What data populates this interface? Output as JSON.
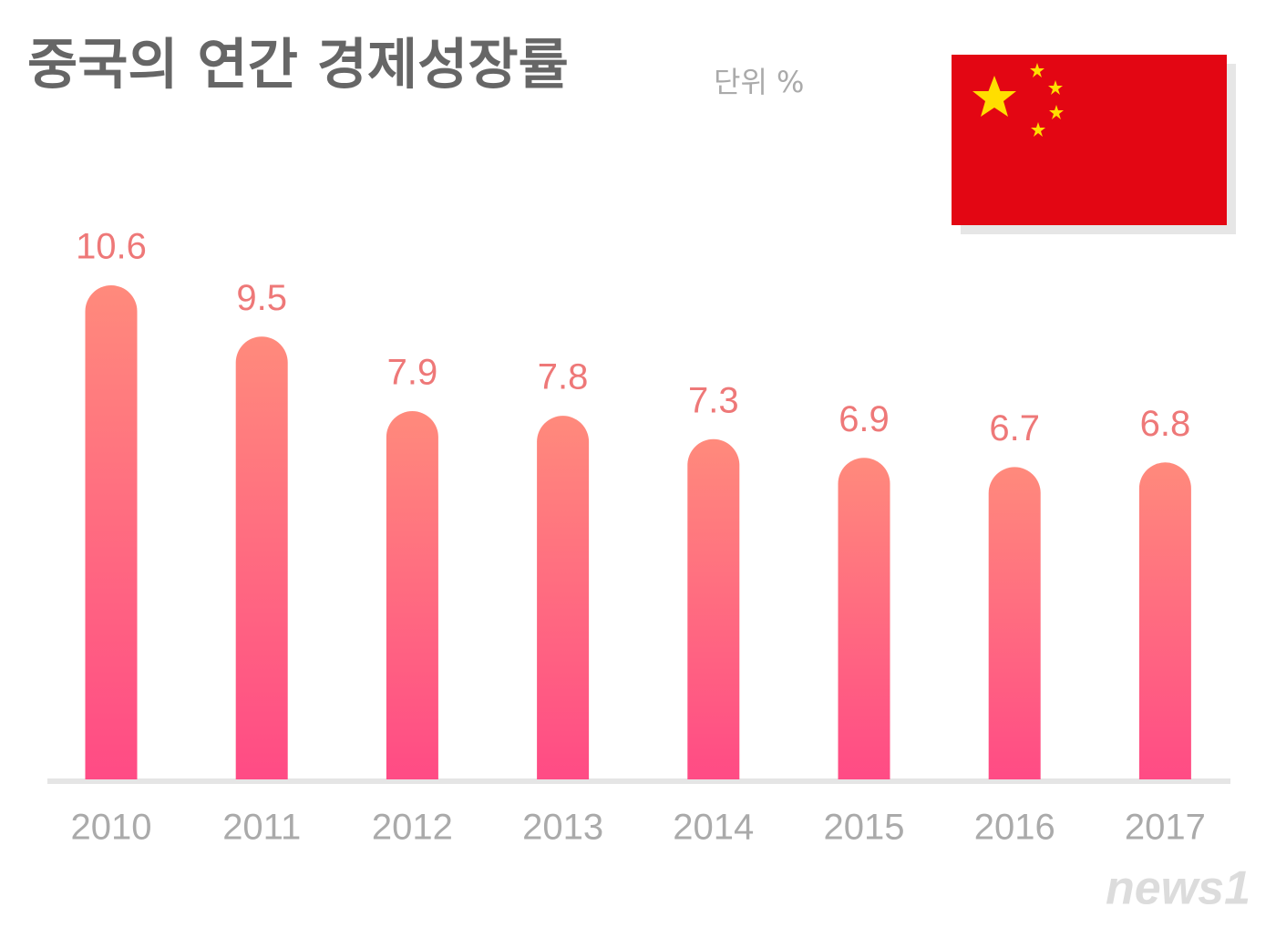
{
  "chart_data": {
    "type": "bar",
    "title": "중국의 연간 경제성장률",
    "unit": "단위 %",
    "categories": [
      "2010",
      "2011",
      "2012",
      "2013",
      "2014",
      "2015",
      "2016",
      "2017"
    ],
    "values": [
      10.6,
      9.5,
      7.9,
      7.8,
      7.3,
      6.9,
      6.7,
      6.8
    ],
    "source": "news1"
  }
}
